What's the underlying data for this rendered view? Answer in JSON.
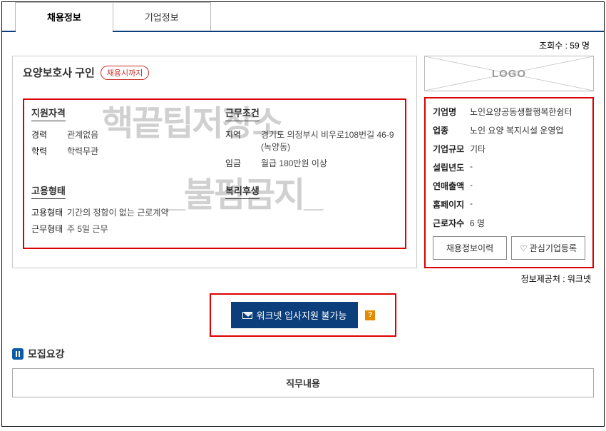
{
  "tabs": {
    "recruit": "채용정보",
    "company": "기업정보"
  },
  "views": {
    "label": "조회수 : ",
    "count": "59 명"
  },
  "job": {
    "title": "요양보호사 구인",
    "badge": "채용시까지"
  },
  "qual": {
    "head": "지원자격",
    "exp_k": "경력",
    "exp_v": "관계없음",
    "edu_k": "학력",
    "edu_v": "학력무관"
  },
  "cond": {
    "head": "근무조건",
    "loc_k": "지역",
    "loc_v": "경기도 의정부시 비우로108번길 46-9 (녹양동)",
    "pay_k": "임금",
    "pay_v": "월급 180만원 이상"
  },
  "emp": {
    "head": "고용형태",
    "type_k": "고용형태",
    "type_v": "기간의 정함이 없는 근로계약",
    "work_k": "근무형태",
    "work_v": "주 5일 근무"
  },
  "welfare": {
    "head": "복리후생"
  },
  "logo": "LOGO",
  "company": {
    "name_k": "기업명",
    "name_v": "노인요양공동생활행복한쉼터",
    "biz_k": "업종",
    "biz_v": "노인 요양 복지시설 운영업",
    "size_k": "기업규모",
    "size_v": "기타",
    "est_k": "설립년도",
    "est_v": "-",
    "rev_k": "연매출액",
    "rev_v": "-",
    "home_k": "홈페이지",
    "home_v": "-",
    "emp_k": "근로자수",
    "emp_v": "6 명"
  },
  "btns": {
    "history": "채용정보이력",
    "fav": "관심기업등록"
  },
  "source": "정보제공처 : 워크넷",
  "apply": "워크넷 입사지원 불가능",
  "qmark": "?",
  "sect": "모집요강",
  "detail": "직무내용",
  "wm1": "핵끝팁저장소",
  "wm2": "_불펌금지_"
}
